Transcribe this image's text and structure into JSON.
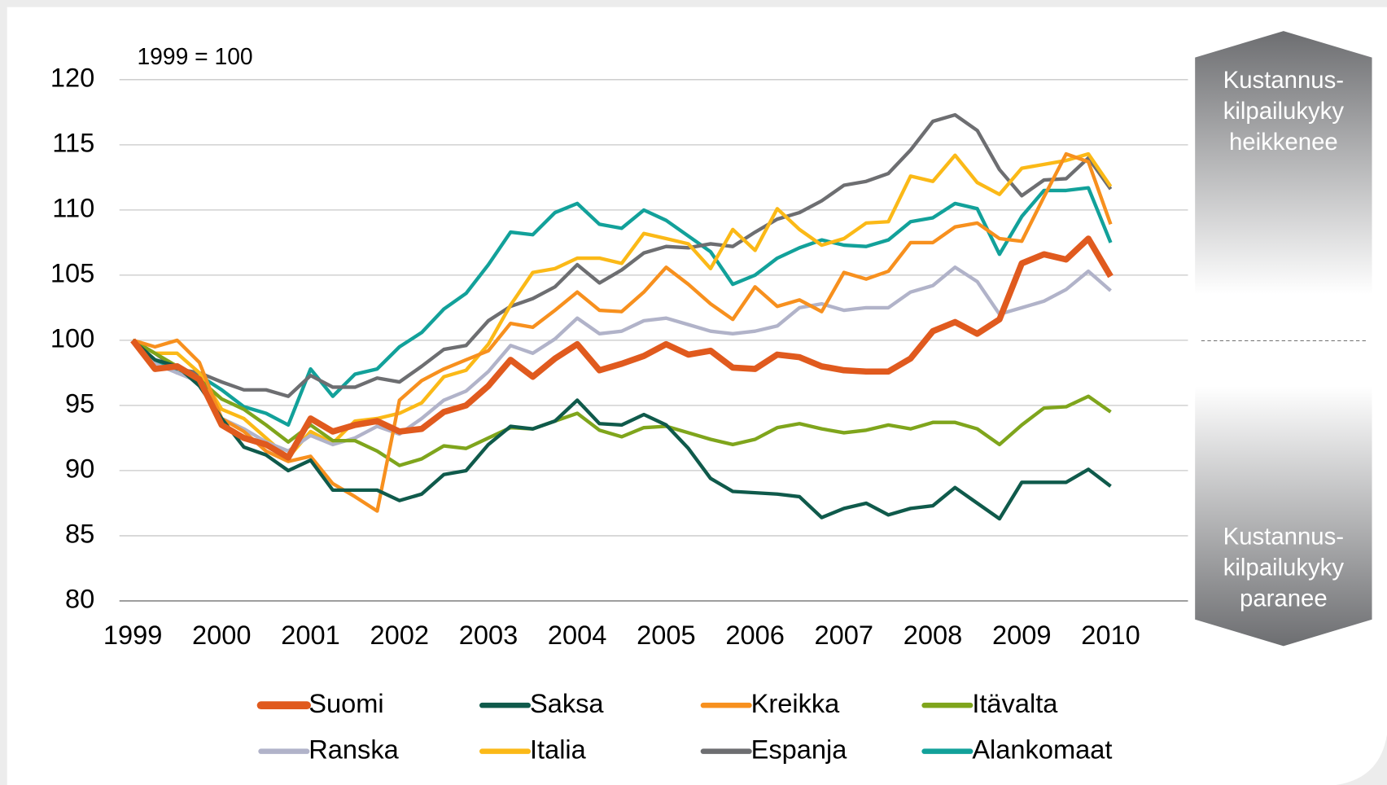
{
  "chart_data": {
    "type": "line",
    "annotations": [
      "1999 = 100"
    ],
    "side_labels": [
      [
        "Kustannus-",
        "kilpailukyky",
        "heikkenee"
      ],
      [
        "Kustannus-",
        "kilpailukyky",
        "paranee"
      ]
    ],
    "x": [
      1999,
      1999.25,
      1999.5,
      1999.75,
      2000,
      2000.25,
      2000.5,
      2000.75,
      2001,
      2001.25,
      2001.5,
      2001.75,
      2002,
      2002.25,
      2002.5,
      2002.75,
      2003,
      2003.25,
      2003.5,
      2003.75,
      2004,
      2004.25,
      2004.5,
      2004.75,
      2005,
      2005.25,
      2005.5,
      2005.75,
      2006,
      2006.25,
      2006.5,
      2006.75,
      2007,
      2007.25,
      2007.5,
      2007.75,
      2008,
      2008.25,
      2008.5,
      2008.75,
      2009,
      2009.25,
      2009.5,
      2009.75,
      2010
    ],
    "xlim": [
      1998.85,
      2010.87
    ],
    "xticks": [
      1999,
      2000,
      2001,
      2002,
      2003,
      2004,
      2005,
      2006,
      2007,
      2008,
      2009,
      2010
    ],
    "ylim": [
      80,
      120
    ],
    "yticks": [
      80,
      85,
      90,
      95,
      100,
      105,
      110,
      115,
      120
    ],
    "grid": true,
    "legend": "bottom",
    "series": [
      {
        "name": "Suomi",
        "color": "#e05a1e",
        "values": [
          100,
          97.8,
          98,
          97,
          93.5,
          92.5,
          92,
          91,
          94,
          93,
          93.5,
          93.8,
          93,
          93.2,
          94.5,
          95,
          96.5,
          98.5,
          97.2,
          98.6,
          99.7,
          97.7,
          98.2,
          98.8,
          99.7,
          98.9,
          99.2,
          97.9,
          97.8,
          98.9,
          98.7,
          98.0,
          97.7,
          97.6,
          97.6,
          98.6,
          100.7,
          101.4,
          100.5,
          101.6,
          105.9,
          106.6,
          106.2,
          107.8,
          104.9
        ]
      },
      {
        "name": "Saksa",
        "color": "#0f5a4b",
        "values": [
          100,
          98.5,
          98,
          96.5,
          94,
          91.8,
          91.2,
          90,
          90.8,
          88.5,
          88.5,
          88.5,
          87.7,
          88.2,
          89.7,
          90,
          92,
          93.4,
          93.2,
          93.8,
          95.4,
          93.6,
          93.5,
          94.3,
          93.5,
          91.7,
          89.4,
          88.4,
          88.3,
          88.2,
          88.0,
          86.4,
          87.1,
          87.5,
          86.6,
          87.1,
          87.3,
          88.7,
          87.5,
          86.3,
          89.1,
          89.1,
          89.1,
          90.1,
          88.8
        ]
      },
      {
        "name": "Kreikka",
        "color": "#f7901e",
        "values": [
          100,
          99.5,
          100,
          98.3,
          94,
          93,
          91.5,
          90.7,
          91.1,
          89.0,
          88.0,
          86.9,
          95.4,
          96.9,
          97.8,
          98.5,
          99.2,
          101.3,
          101.0,
          102.3,
          103.7,
          102.3,
          102.2,
          103.7,
          105.6,
          104.3,
          102.8,
          101.6,
          104.1,
          102.6,
          103.1,
          102.2,
          105.2,
          104.7,
          105.3,
          107.5,
          107.5,
          108.7,
          109.0,
          107.8,
          107.6,
          111.0,
          114.3,
          113.7,
          108.9
        ]
      },
      {
        "name": "Itävalta",
        "color": "#7fa51c",
        "values": [
          100,
          99,
          98,
          97,
          95.5,
          94.7,
          93.5,
          92.2,
          93.5,
          92.3,
          92.3,
          91.5,
          90.4,
          90.9,
          91.9,
          91.7,
          92.5,
          93.3,
          93.2,
          93.8,
          94.4,
          93.1,
          92.6,
          93.3,
          93.4,
          92.9,
          92.4,
          92.0,
          92.4,
          93.3,
          93.6,
          93.2,
          92.9,
          93.1,
          93.5,
          93.2,
          93.7,
          93.7,
          93.2,
          92.0,
          93.5,
          94.8,
          94.9,
          95.7,
          94.5
        ]
      },
      {
        "name": "Ranska",
        "color": "#b1b3c9",
        "values": [
          100,
          98.2,
          97.5,
          96.8,
          94,
          93.2,
          92.2,
          91.5,
          92.7,
          92.0,
          92.5,
          93.4,
          92.8,
          94.0,
          95.4,
          96.1,
          97.6,
          99.6,
          99.0,
          100.1,
          101.7,
          100.5,
          100.7,
          101.5,
          101.7,
          101.2,
          100.7,
          100.5,
          100.7,
          101.1,
          102.5,
          102.8,
          102.3,
          102.5,
          102.5,
          103.7,
          104.2,
          105.6,
          104.5,
          102.0,
          102.5,
          103.0,
          103.9,
          105.3,
          103.8
        ]
      },
      {
        "name": "Italia",
        "color": "#fbb917",
        "values": [
          100,
          99,
          99,
          97.5,
          94.7,
          94,
          92.5,
          91,
          93,
          92.1,
          93.8,
          94,
          94.4,
          95.2,
          97.2,
          97.7,
          99.7,
          102.7,
          105.2,
          105.5,
          106.3,
          106.3,
          105.9,
          108.2,
          107.8,
          107.4,
          105.5,
          108.5,
          106.9,
          110.1,
          108.5,
          107.3,
          107.8,
          109.0,
          109.1,
          112.6,
          112.2,
          114.2,
          112.1,
          111.2,
          113.2,
          113.5,
          113.8,
          114.3,
          111.8
        ]
      },
      {
        "name": "Espanja",
        "color": "#6d6e71",
        "values": [
          100,
          99,
          97.8,
          97.5,
          96.8,
          96.2,
          96.2,
          95.7,
          97.3,
          96.4,
          96.4,
          97.1,
          96.8,
          98.0,
          99.3,
          99.6,
          101.5,
          102.6,
          103.2,
          104.1,
          105.8,
          104.4,
          105.4,
          106.7,
          107.2,
          107.1,
          107.4,
          107.2,
          108.3,
          109.3,
          109.8,
          110.7,
          111.9,
          112.2,
          112.8,
          114.6,
          116.8,
          117.3,
          116.1,
          113.1,
          111.1,
          112.3,
          112.4,
          114.0,
          111.6
        ]
      },
      {
        "name": "Alankomaat",
        "color": "#12a19a",
        "values": [
          100,
          98.5,
          97.5,
          97.3,
          96.2,
          94.9,
          94.4,
          93.5,
          97.8,
          95.7,
          97.4,
          97.8,
          99.5,
          100.6,
          102.4,
          103.6,
          105.8,
          108.3,
          108.1,
          109.8,
          110.5,
          108.9,
          108.6,
          110.0,
          109.2,
          108.0,
          106.8,
          104.3,
          105.0,
          106.3,
          107.1,
          107.7,
          107.3,
          107.2,
          107.7,
          109.1,
          109.4,
          110.5,
          110.1,
          106.6,
          109.5,
          111.5,
          111.5,
          111.7,
          107.5
        ]
      }
    ]
  }
}
